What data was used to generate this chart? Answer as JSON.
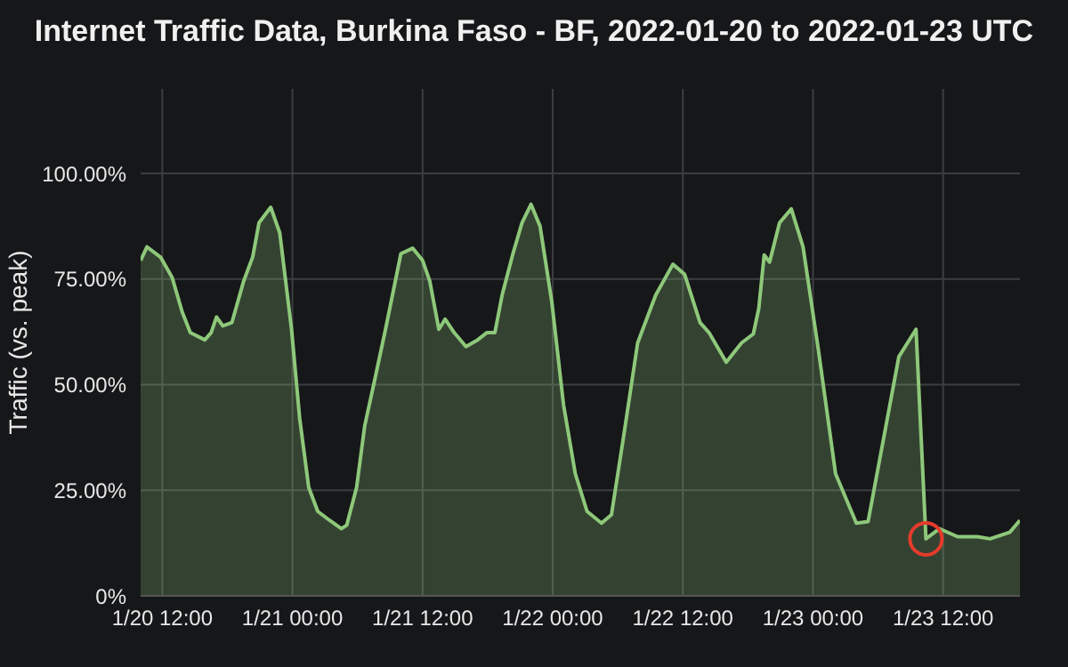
{
  "chart_data": {
    "type": "area",
    "title": "Internet Traffic Data, Burkina Faso - BF, 2022-01-20 to 2022-01-23 UTC",
    "ylabel": "Traffic (vs. peak)",
    "x": [
      "2022-01-20T10:00",
      "2022-01-20T10:35",
      "2022-01-20T11:50",
      "2022-01-20T12:55",
      "2022-01-20T13:50",
      "2022-01-20T14:35",
      "2022-01-20T15:55",
      "2022-01-20T16:30",
      "2022-01-20T17:00",
      "2022-01-20T17:35",
      "2022-01-20T18:25",
      "2022-01-20T19:30",
      "2022-01-20T20:20",
      "2022-01-20T20:55",
      "2022-01-20T22:00",
      "2022-01-20T22:50",
      "2022-01-20T23:55",
      "2022-01-21T00:40",
      "2022-01-21T01:30",
      "2022-01-21T02:20",
      "2022-01-21T03:25",
      "2022-01-21T04:30",
      "2022-01-21T05:00",
      "2022-01-21T05:55",
      "2022-01-21T06:40",
      "2022-01-21T07:30",
      "2022-01-21T08:35",
      "2022-01-21T10:00",
      "2022-01-21T11:05",
      "2022-01-21T12:00",
      "2022-01-21T12:40",
      "2022-01-21T13:30",
      "2022-01-21T14:05",
      "2022-01-21T14:55",
      "2022-01-21T16:00",
      "2022-01-21T17:05",
      "2022-01-21T17:55",
      "2022-01-21T18:40",
      "2022-01-21T19:20",
      "2022-01-21T20:20",
      "2022-01-21T21:10",
      "2022-01-21T22:00",
      "2022-01-21T22:50",
      "2022-01-21T23:55",
      "2022-01-22T01:00",
      "2022-01-22T02:05",
      "2022-01-22T03:10",
      "2022-01-22T04:30",
      "2022-01-22T05:25",
      "2022-01-22T06:30",
      "2022-01-22T07:50",
      "2022-01-22T09:30",
      "2022-01-22T11:05",
      "2022-01-22T12:10",
      "2022-01-22T13:35",
      "2022-01-22T14:25",
      "2022-01-22T16:00",
      "2022-01-22T17:25",
      "2022-01-22T18:30",
      "2022-01-22T19:00",
      "2022-01-22T19:30",
      "2022-01-22T20:00",
      "2022-01-22T20:55",
      "2022-01-22T22:00",
      "2022-01-22T23:05",
      "2022-01-23T00:30",
      "2022-01-23T02:05",
      "2022-01-23T04:00",
      "2022-01-23T05:05",
      "2022-01-23T06:30",
      "2022-01-23T07:55",
      "2022-01-23T09:30",
      "2022-01-23T10:25",
      "2022-01-23T11:40",
      "2022-01-23T13:20",
      "2022-01-23T15:10",
      "2022-01-23T16:20",
      "2022-01-23T18:10",
      "2022-01-23T19:05"
    ],
    "series": [
      {
        "color": "#8ec87a",
        "values": [
          79.4,
          82.6,
          80.2,
          75.3,
          67.2,
          62.3,
          60.6,
          62.3,
          66,
          63.9,
          64.7,
          74.5,
          80.2,
          88.3,
          92,
          85.9,
          63.1,
          42,
          25.7,
          20,
          17.9,
          15.9,
          16.7,
          25.7,
          40.3,
          50.1,
          63.1,
          81,
          82.3,
          79.4,
          74.5,
          63.1,
          65.5,
          62.3,
          59,
          60.6,
          62.3,
          62.3,
          71.2,
          81,
          88.3,
          92.7,
          87.5,
          69.6,
          45.2,
          28.9,
          20,
          17.2,
          19.2,
          37.1,
          59.9,
          71.2,
          78.5,
          76.1,
          64.7,
          62.3,
          55.3,
          59.9,
          62,
          68,
          80.7,
          79,
          88.3,
          91.6,
          82.6,
          58.2,
          28.9,
          17.2,
          17.6,
          37.1,
          56.6,
          63.1,
          13.5,
          15.9,
          14,
          14,
          13.5,
          15.1,
          17.9
        ]
      }
    ],
    "xlim": [
      "2022-01-20T10:00",
      "2022-01-23T19:05"
    ],
    "xticks": [
      {
        "value": "2022-01-20T12:00",
        "label": "1/20 12:00"
      },
      {
        "value": "2022-01-21T00:00",
        "label": "1/21 00:00"
      },
      {
        "value": "2022-01-21T12:00",
        "label": "1/21 12:00"
      },
      {
        "value": "2022-01-22T00:00",
        "label": "1/22 00:00"
      },
      {
        "value": "2022-01-22T12:00",
        "label": "1/22 12:00"
      },
      {
        "value": "2022-01-23T00:00",
        "label": "1/23 00:00"
      },
      {
        "value": "2022-01-23T12:00",
        "label": "1/23 12:00"
      }
    ],
    "ylim": [
      0,
      120
    ],
    "yticks": [
      {
        "value": 0,
        "label": "0%"
      },
      {
        "value": 25,
        "label": "25.00%"
      },
      {
        "value": 50,
        "label": "50.00%"
      },
      {
        "value": 75,
        "label": "75.00%"
      },
      {
        "value": 100,
        "label": "100.00%"
      }
    ],
    "grid": true,
    "legend": false
  }
}
